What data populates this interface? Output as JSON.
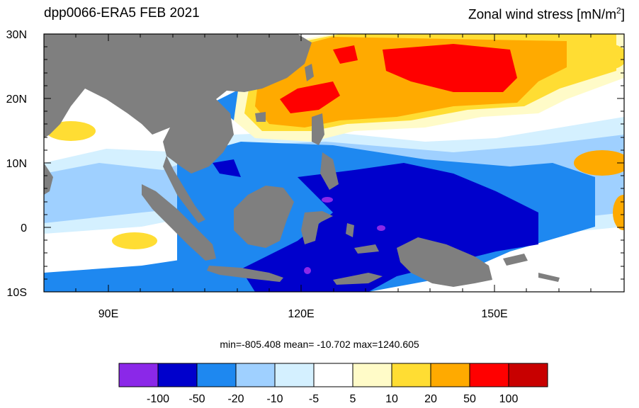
{
  "title": {
    "dataset": "dpp0066-ERA5  FEB 2021",
    "variable_prefix": "Zonal wind stress [mN/m",
    "variable_sup": "2",
    "variable_suffix": "]"
  },
  "map": {
    "region": "Western Pacific / Maritime Continent",
    "lon_range": [
      80,
      170
    ],
    "lat_range": [
      -10,
      30
    ],
    "lat_ticks": [
      "30N",
      "20N",
      "10N",
      "0",
      "10S"
    ],
    "lon_ticks": [
      "90E",
      "120E",
      "150E"
    ],
    "land_color": "#7f7f7f"
  },
  "stats": {
    "text": "min=-805.408  mean= -10.702  max=1240.605",
    "min": -805.408,
    "mean": -10.702,
    "max": 1240.605
  },
  "colorbar": {
    "colors": [
      "#8b28e8",
      "#0000cc",
      "#1e88f0",
      "#9fd0ff",
      "#d4f0ff",
      "#ffffff",
      "#fffbc8",
      "#ffdd33",
      "#ffaa00",
      "#ff0000",
      "#c80000"
    ],
    "labels": [
      "-100",
      "-50",
      "-20",
      "-10",
      "-5",
      "5",
      "10",
      "20",
      "50",
      "100"
    ]
  }
}
